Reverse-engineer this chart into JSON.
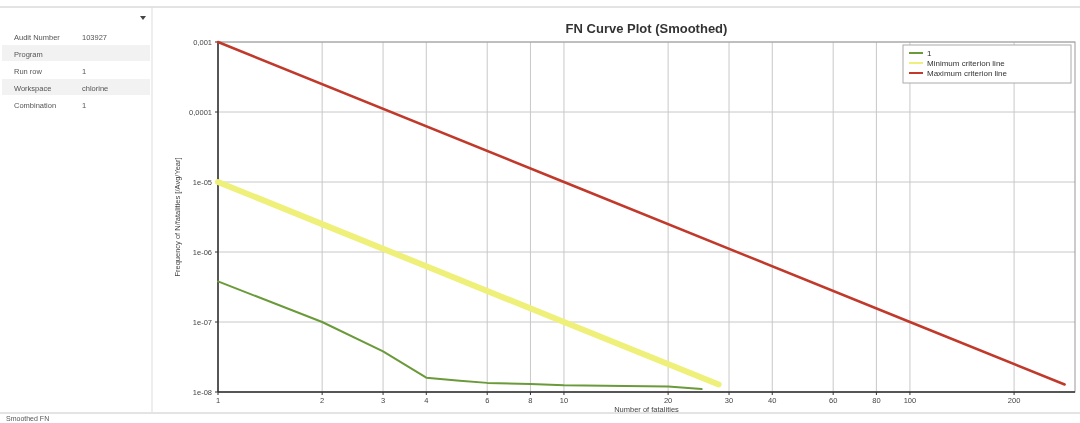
{
  "chart_data": {
    "type": "line",
    "title": "FN Curve Plot (Smoothed)",
    "xlabel": "Number of fatalities",
    "ylabel": "Frequency of N/fatalities [/Avg/Year]",
    "log": "xy",
    "grid": true,
    "legend": "top right",
    "marker": "none",
    "line_style": "solid",
    "xlim": [
      1,
      300
    ],
    "xticks": [
      1,
      2,
      3,
      4,
      6,
      8,
      10,
      20,
      30,
      40,
      60,
      80,
      100,
      200
    ],
    "ylim": [
      1e-08,
      0.001
    ],
    "yticks": [
      {
        "value": 0.001,
        "label": "0,001"
      },
      {
        "value": 0.0001,
        "label": "0,0001"
      },
      {
        "value": 1e-05,
        "label": "1e-05"
      },
      {
        "value": 1e-06,
        "label": "1e-06"
      },
      {
        "value": 1e-07,
        "label": "1e-07"
      },
      {
        "value": 1e-08,
        "label": "1e-08"
      }
    ],
    "series": [
      {
        "name": "1",
        "color": "#6a9a3a",
        "x": [
          1,
          2,
          3,
          4,
          5,
          6,
          8,
          10,
          15,
          20,
          25
        ],
        "values": [
          3.8e-07,
          1e-07,
          3.8e-08,
          1.6e-08,
          1.45e-08,
          1.35e-08,
          1.3e-08,
          1.25e-08,
          1.22e-08,
          1.2e-08,
          1.1e-08
        ]
      },
      {
        "name": "Minimum criterion line",
        "color": "#eef07a",
        "x": [
          1,
          2,
          4,
          10,
          28
        ],
        "values": [
          1e-05,
          2.5e-06,
          6.25e-07,
          1e-07,
          1.28e-08
        ]
      },
      {
        "name": "Maximum criterion line",
        "color": "#c0392b",
        "x": [
          1,
          10,
          100,
          280
        ],
        "values": [
          0.001,
          1e-05,
          1e-07,
          1.28e-08
        ]
      }
    ],
    "annotations": [
      "Audit Number",
      "103927",
      "Run row",
      "1",
      "Workspace",
      "chlorine",
      "Combination",
      "1",
      "Program",
      "Smoothed FN"
    ]
  }
}
